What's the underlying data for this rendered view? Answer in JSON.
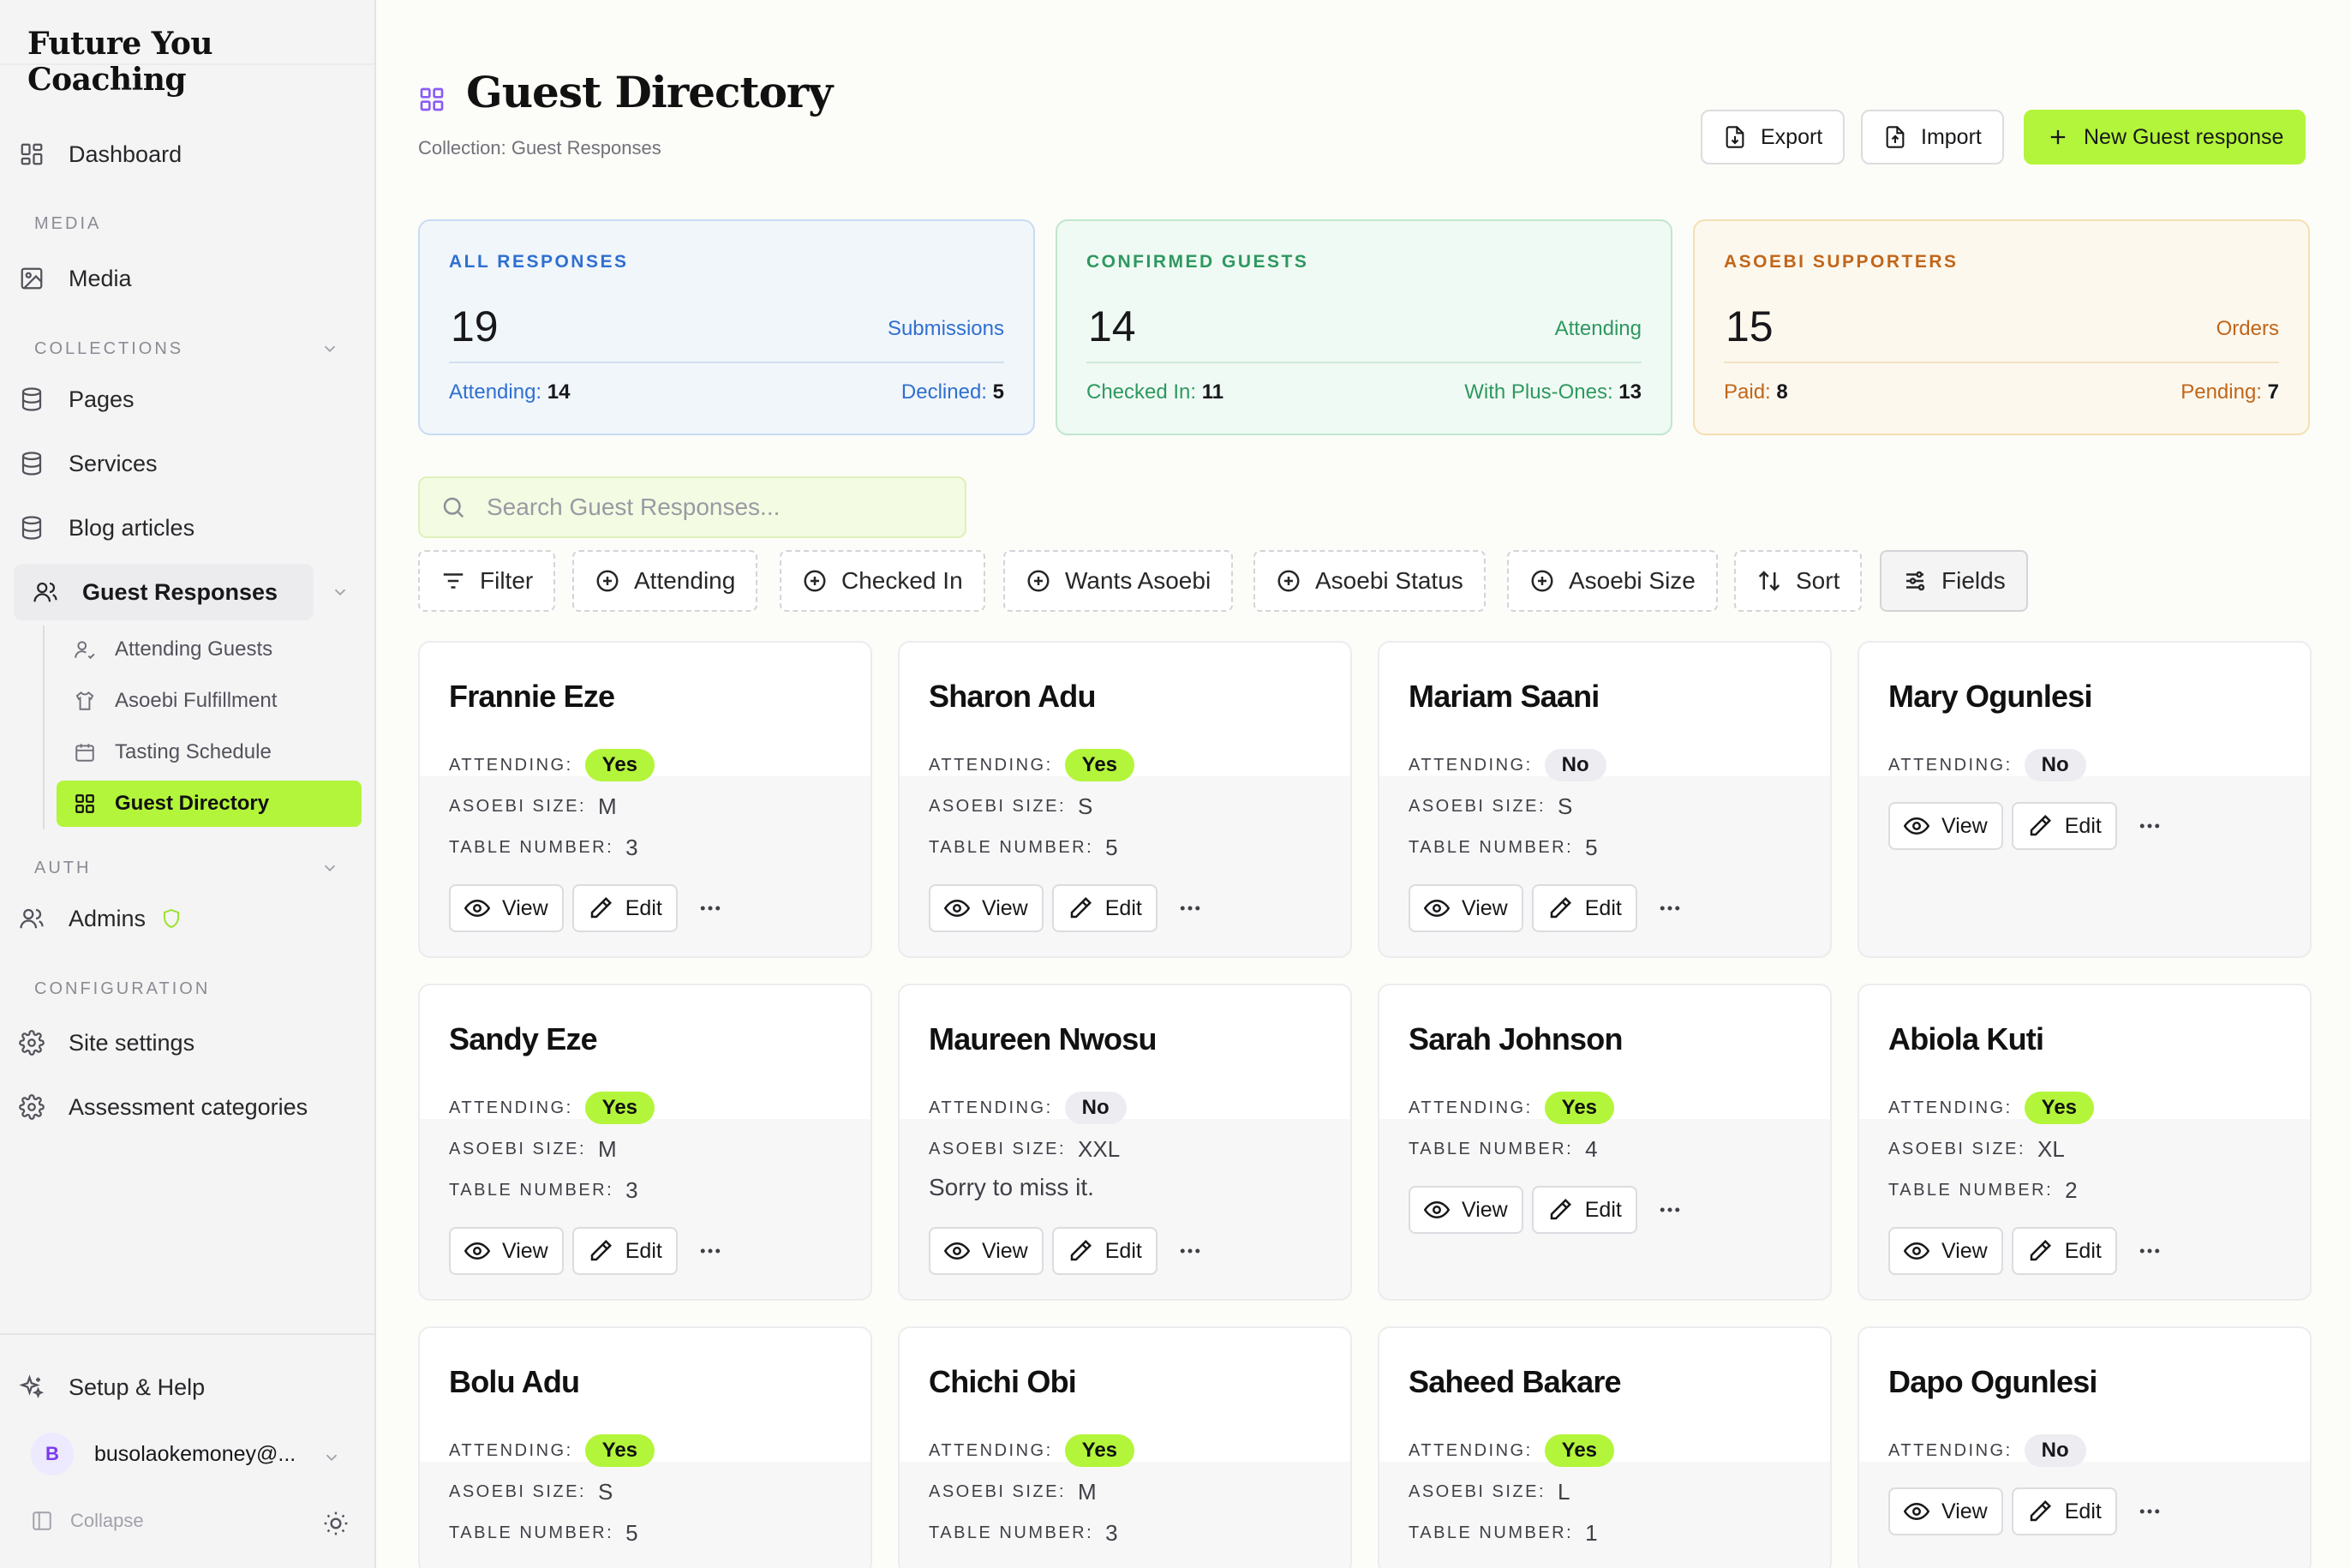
{
  "brand": "Future You Coaching",
  "sidebar": {
    "dashboard": "Dashboard",
    "section_media": "MEDIA",
    "media": "Media",
    "section_collections": "COLLECTIONS",
    "pages": "Pages",
    "services": "Services",
    "blog_articles": "Blog articles",
    "guest_responses": "Guest Responses",
    "sub_items": [
      "Attending Guests",
      "Asoebi Fulfillment",
      "Tasting Schedule",
      "Guest Directory"
    ],
    "section_auth": "AUTH",
    "admins": "Admins",
    "section_configuration": "CONFIGURATION",
    "site_settings": "Site settings",
    "assessment_categories": "Assessment categories",
    "setup_help": "Setup & Help",
    "user_initial": "B",
    "user_email": "busolaokemoney@...",
    "collapse": "Collapse"
  },
  "header": {
    "title": "Guest Directory",
    "subtitle": "Collection: Guest Responses",
    "export": "Export",
    "import": "Import",
    "new_button": "New Guest response"
  },
  "stats": [
    {
      "label": "ALL RESPONSES",
      "value": "19",
      "right": "Submissions",
      "foot_left_label": "Attending:",
      "foot_left_value": "14",
      "foot_right_label": "Declined:",
      "foot_right_value": "5"
    },
    {
      "label": "CONFIRMED GUESTS",
      "value": "14",
      "right": "Attending",
      "foot_left_label": "Checked In:",
      "foot_left_value": "11",
      "foot_right_label": "With Plus-Ones:",
      "foot_right_value": "13"
    },
    {
      "label": "ASOEBI SUPPORTERS",
      "value": "15",
      "right": "Orders",
      "foot_left_label": "Paid:",
      "foot_left_value": "8",
      "foot_right_label": "Pending:",
      "foot_right_value": "7"
    }
  ],
  "search": {
    "placeholder": "Search Guest Responses..."
  },
  "filters": [
    "Filter",
    "Attending",
    "Checked In",
    "Wants Asoebi",
    "Asoebi Status",
    "Asoebi Size",
    "Sort",
    "Fields"
  ],
  "card_labels": {
    "attending": "ATTENDING:",
    "asoebi_size": "ASOEBI SIZE:",
    "table_number": "TABLE NUMBER:",
    "view": "View",
    "edit": "Edit"
  },
  "guests": [
    {
      "name": "Frannie Eze",
      "attending": "Yes",
      "asoebi_size": "M",
      "table_number": "3"
    },
    {
      "name": "Sharon Adu",
      "attending": "Yes",
      "asoebi_size": "S",
      "table_number": "5"
    },
    {
      "name": "Mariam Saani",
      "attending": "No",
      "asoebi_size": "S",
      "table_number": "5"
    },
    {
      "name": "Mary Ogunlesi",
      "attending": "No"
    },
    {
      "name": "Sandy Eze",
      "attending": "Yes",
      "asoebi_size": "M",
      "table_number": "3"
    },
    {
      "name": "Maureen Nwosu",
      "attending": "No",
      "asoebi_size": "XXL",
      "note": "Sorry to miss it."
    },
    {
      "name": "Sarah Johnson",
      "attending": "Yes",
      "table_number": "4"
    },
    {
      "name": "Abiola Kuti",
      "attending": "Yes",
      "asoebi_size": "XL",
      "table_number": "2"
    },
    {
      "name": "Bolu Adu",
      "attending": "Yes",
      "asoebi_size": "S",
      "table_number": "5"
    },
    {
      "name": "Chichi Obi",
      "attending": "Yes",
      "asoebi_size": "M",
      "table_number": "3"
    },
    {
      "name": "Saheed Bakare",
      "attending": "Yes",
      "asoebi_size": "L",
      "table_number": "1"
    },
    {
      "name": "Dapo Ogunlesi",
      "attending": "No"
    }
  ]
}
